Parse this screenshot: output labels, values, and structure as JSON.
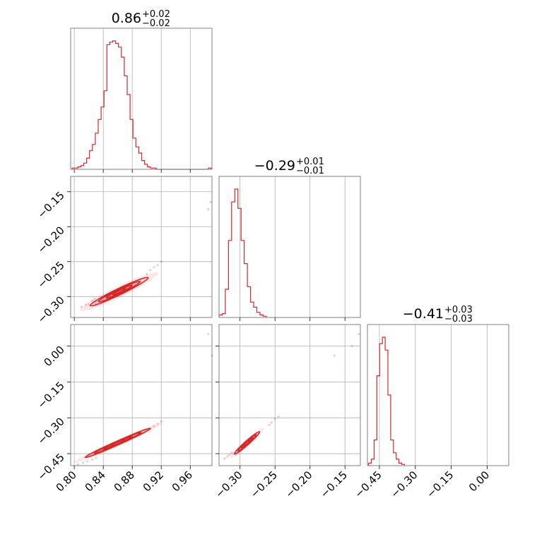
{
  "chart_data": {
    "type": "corner",
    "color": "#d62728",
    "grid": true,
    "titles": [
      {
        "value": "0.86",
        "plus": "+0.02",
        "minus": "−0.02"
      },
      {
        "value": "−0.29",
        "plus": "+0.01",
        "minus": "−0.01"
      },
      {
        "value": "−0.41",
        "plus": "+0.03",
        "minus": "−0.03"
      }
    ],
    "axes": {
      "p0": {
        "range": [
          0.795,
          0.99
        ],
        "ticks": [
          0.8,
          0.84,
          0.88,
          0.92,
          0.96
        ],
        "labels": [
          "0.80",
          "0.84",
          "0.88",
          "0.92",
          "0.96"
        ]
      },
      "p1": {
        "range": [
          -0.33,
          -0.128
        ],
        "ticks": [
          -0.3,
          -0.25,
          -0.2,
          -0.15
        ],
        "labels": [
          "−0.30",
          "−0.25",
          "−0.20",
          "−0.15"
        ]
      },
      "p2": {
        "range": [
          -0.5,
          0.09
        ],
        "ticks": [
          -0.45,
          -0.3,
          -0.15,
          0.0
        ],
        "labels": [
          "−0.45",
          "−0.30",
          "−0.15",
          "0.00"
        ]
      }
    },
    "histograms": [
      {
        "param": 0,
        "start": 0.797,
        "bin": 0.004,
        "counts": [
          1,
          1,
          2,
          3,
          5,
          9,
          15,
          20,
          29,
          40,
          50,
          63,
          100,
          102,
          103,
          101,
          98,
          90,
          75,
          60,
          40,
          25,
          18,
          13,
          7,
          4,
          2,
          1,
          1,
          0,
          0,
          0,
          0,
          0,
          0,
          0,
          0,
          0,
          0,
          0,
          0,
          0,
          0,
          0,
          0,
          0,
          0,
          1
        ]
      },
      {
        "param": 1,
        "start": -0.33,
        "bin": 0.0045,
        "counts": [
          2,
          3,
          22,
          60,
          90,
          100,
          85,
          60,
          42,
          24,
          12,
          8,
          4,
          2,
          1
        ]
      },
      {
        "param": 2,
        "start": -0.495,
        "bin": 0.0115,
        "counts": [
          2,
          5,
          20,
          70,
          95,
          100,
          90,
          55,
          20,
          10,
          5,
          2,
          1
        ]
      }
    ],
    "contours": [
      {
        "x": 0,
        "y": 1,
        "center": [
          0.862,
          -0.293
        ],
        "slope": 0.5,
        "spread": [
          0.04,
          0.0045
        ]
      },
      {
        "x": 0,
        "y": 2,
        "center": [
          0.86,
          -0.405
        ],
        "slope": 1.35,
        "spread": [
          0.045,
          0.008
        ]
      },
      {
        "x": 1,
        "y": 2,
        "center": [
          -0.29,
          -0.405
        ],
        "slope": 2.6,
        "spread": [
          0.018,
          0.008
        ]
      }
    ],
    "scatter": [
      {
        "x": 0,
        "y": 1,
        "points": [
          [
            0.81,
            -0.315
          ],
          [
            0.816,
            -0.312
          ],
          [
            0.82,
            -0.311
          ],
          [
            0.825,
            -0.306
          ],
          [
            0.83,
            -0.31
          ],
          [
            0.828,
            -0.303
          ],
          [
            0.835,
            -0.305
          ],
          [
            0.9,
            -0.268
          ],
          [
            0.905,
            -0.262
          ],
          [
            0.91,
            -0.258
          ],
          [
            0.915,
            -0.255
          ],
          [
            0.92,
            -0.25
          ],
          [
            0.985,
            -0.175
          ],
          [
            0.988,
            -0.165
          ]
        ]
      },
      {
        "x": 0,
        "y": 2,
        "points": [
          [
            0.805,
            -0.495
          ],
          [
            0.812,
            -0.488
          ],
          [
            0.818,
            -0.482
          ],
          [
            0.825,
            -0.475
          ],
          [
            0.83,
            -0.468
          ],
          [
            0.905,
            -0.345
          ],
          [
            0.91,
            -0.335
          ],
          [
            0.915,
            -0.325
          ],
          [
            0.92,
            -0.315
          ],
          [
            0.985,
            0.05
          ],
          [
            0.99,
            -0.04
          ]
        ]
      },
      {
        "x": 1,
        "y": 2,
        "points": [
          [
            -0.322,
            -0.47
          ],
          [
            -0.318,
            -0.462
          ],
          [
            -0.315,
            -0.455
          ],
          [
            -0.312,
            -0.445
          ],
          [
            -0.258,
            -0.33
          ],
          [
            -0.255,
            -0.32
          ],
          [
            -0.25,
            -0.305
          ],
          [
            -0.245,
            -0.295
          ],
          [
            -0.14,
            0.0
          ],
          [
            -0.13,
            0.05
          ],
          [
            -0.165,
            -0.04
          ]
        ]
      }
    ]
  }
}
